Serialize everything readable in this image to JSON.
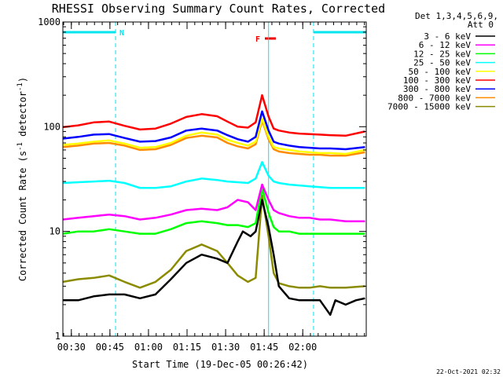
{
  "chart_data": {
    "type": "line",
    "title": "RHESSI Observing Summary Count Rates, Corrected",
    "xlabel": "Start Time (19-Dec-05 00:26:42)",
    "ylabel_parts": [
      "Corrected Count Rate (s",
      "-1",
      " detector",
      "-1",
      ")"
    ],
    "yscale": "log",
    "ylim": [
      1,
      1000
    ],
    "xlim_minutes": [
      0,
      118
    ],
    "x_ticks": [
      {
        "label": "00:30",
        "min": 3.3
      },
      {
        "label": "00:45",
        "min": 18.3
      },
      {
        "label": "01:00",
        "min": 33.3
      },
      {
        "label": "01:15",
        "min": 48.3
      },
      {
        "label": "01:30",
        "min": 63.3
      },
      {
        "label": "01:45",
        "min": 78.3
      },
      {
        "label": "02:00",
        "min": 93.3
      }
    ],
    "y_ticks": [
      {
        "label": "1",
        "value": 1
      },
      {
        "label": "10",
        "value": 10
      },
      {
        "label": "100",
        "value": 100
      },
      {
        "label": "1000",
        "value": 1000
      }
    ],
    "legend_header": [
      "Det 1,3,4,5,6,9,",
      "Att 0"
    ],
    "legend_position": "right",
    "markers": {
      "night_label": "N",
      "flare_label": "F",
      "night_intervals": [
        [
          0,
          20.5
        ],
        [
          97.5,
          118
        ]
      ],
      "flare_interval": [
        78,
        80
      ],
      "colors": {
        "night": "#00e5ee",
        "flare": "#ee0000"
      }
    },
    "series": [
      {
        "name": "3 - 6 keV",
        "color": "#000000",
        "x": [
          0,
          6,
          12,
          18,
          24,
          30,
          36,
          42,
          48,
          54,
          60,
          64,
          68,
          70,
          73,
          75,
          77.5,
          80,
          82,
          84,
          88,
          92,
          96,
          100,
          104,
          106,
          110,
          114,
          117.5
        ],
        "y": [
          2.2,
          2.2,
          2.4,
          2.5,
          2.5,
          2.3,
          2.5,
          3.5,
          5,
          6,
          5.5,
          5,
          8,
          10,
          9,
          10,
          20,
          11,
          6,
          3,
          2.3,
          2.2,
          2.2,
          2.2,
          1.6,
          2.2,
          2.0,
          2.2,
          2.3
        ]
      },
      {
        "name": "6 - 12 keV",
        "color": "#ff00ff",
        "x": [
          0,
          6,
          12,
          18,
          24,
          30,
          36,
          42,
          48,
          54,
          60,
          64,
          68,
          72,
          75,
          77.5,
          80,
          82,
          84,
          88,
          92,
          96,
          100,
          104,
          110,
          117.5
        ],
        "y": [
          13,
          13.5,
          14,
          14.5,
          14,
          13,
          13.5,
          14.5,
          16,
          16.5,
          16,
          17,
          20,
          19,
          16,
          28,
          20,
          16,
          15,
          14,
          13.5,
          13.5,
          13,
          13,
          12.5,
          12.5
        ]
      },
      {
        "name": "12 - 25 keV",
        "color": "#00ff00",
        "x": [
          0,
          6,
          12,
          18,
          24,
          30,
          36,
          42,
          48,
          54,
          60,
          64,
          68,
          72,
          75,
          77.5,
          80,
          82,
          84,
          88,
          92,
          96,
          100,
          104,
          110,
          117.5
        ],
        "y": [
          9.5,
          10,
          10,
          10.5,
          10,
          9.5,
          9.5,
          10.5,
          12,
          12.5,
          12,
          11.5,
          11.5,
          11,
          12,
          26,
          15,
          11,
          10,
          10,
          9.5,
          9.5,
          9.5,
          9.5,
          9.5,
          9.5
        ]
      },
      {
        "name": "25 - 50 keV",
        "color": "#00ffff",
        "x": [
          0,
          6,
          12,
          18,
          24,
          30,
          36,
          42,
          48,
          54,
          60,
          64,
          68,
          72,
          75,
          77.5,
          80,
          82,
          84,
          88,
          92,
          96,
          100,
          104,
          110,
          117.5
        ],
        "y": [
          29,
          29.5,
          30,
          30.5,
          29,
          26,
          26,
          27,
          30,
          32,
          31,
          30,
          29.5,
          29,
          32,
          46,
          34,
          30,
          29,
          28,
          27.5,
          27,
          26.5,
          26,
          26,
          26
        ]
      },
      {
        "name": "50 - 100 keV",
        "color": "#ffff00",
        "x": [
          0,
          6,
          12,
          18,
          24,
          30,
          36,
          42,
          48,
          54,
          60,
          64,
          68,
          72,
          75,
          77.5,
          80,
          82,
          84,
          88,
          92,
          96,
          100,
          104,
          110,
          117.5
        ],
        "y": [
          67,
          69,
          72,
          74,
          69,
          63,
          64,
          70,
          82,
          88,
          84,
          75,
          70,
          66,
          72,
          120,
          80,
          64,
          62,
          60,
          58,
          57,
          56,
          56,
          55,
          60
        ]
      },
      {
        "name": "100 - 300 keV",
        "color": "#ff0000",
        "x": [
          0,
          6,
          12,
          18,
          24,
          30,
          36,
          42,
          48,
          54,
          60,
          64,
          68,
          72,
          75,
          77.5,
          80,
          82,
          84,
          88,
          92,
          96,
          100,
          104,
          110,
          117.5
        ],
        "y": [
          99,
          103,
          110,
          112,
          102,
          94,
          96,
          107,
          124,
          132,
          126,
          112,
          100,
          98,
          110,
          200,
          125,
          96,
          92,
          88,
          86,
          85,
          84,
          83,
          82,
          90
        ]
      },
      {
        "name": "300 - 800 keV",
        "color": "#0000ff",
        "x": [
          0,
          6,
          12,
          18,
          24,
          30,
          36,
          42,
          48,
          54,
          60,
          64,
          68,
          72,
          75,
          77.5,
          80,
          82,
          84,
          88,
          92,
          96,
          100,
          104,
          110,
          117.5
        ],
        "y": [
          77,
          80,
          84,
          85,
          78,
          72,
          73,
          79,
          92,
          96,
          92,
          83,
          76,
          72,
          80,
          140,
          92,
          72,
          69,
          66,
          64,
          63,
          62,
          62,
          61,
          64
        ]
      },
      {
        "name": "800 - 7000 keV",
        "color": "#ff8c00",
        "x": [
          0,
          6,
          12,
          18,
          24,
          30,
          36,
          42,
          48,
          54,
          60,
          64,
          68,
          72,
          75,
          77.5,
          80,
          82,
          84,
          88,
          92,
          96,
          100,
          104,
          110,
          117.5
        ],
        "y": [
          64,
          66,
          69,
          70,
          66,
          60,
          61,
          67,
          78,
          82,
          79,
          70,
          65,
          62,
          68,
          115,
          76,
          61,
          58,
          56,
          55,
          54,
          54,
          53,
          53,
          57
        ]
      },
      {
        "name": "7000 - 15000 keV",
        "color": "#8b8b00",
        "x": [
          0,
          6,
          12,
          18,
          24,
          30,
          36,
          42,
          48,
          54,
          60,
          64,
          68,
          72,
          75,
          77.5,
          80,
          82,
          84,
          88,
          92,
          96,
          100,
          104,
          110,
          117.5
        ],
        "y": [
          3.3,
          3.5,
          3.6,
          3.8,
          3.3,
          2.9,
          3.3,
          4.3,
          6.5,
          7.5,
          6.5,
          5,
          3.8,
          3.3,
          3.6,
          22,
          9,
          4,
          3.2,
          3.0,
          2.9,
          2.9,
          3.0,
          2.9,
          2.9,
          3.0
        ]
      }
    ]
  },
  "footer": {
    "timestamp": "22-Oct-2021 02:32"
  }
}
